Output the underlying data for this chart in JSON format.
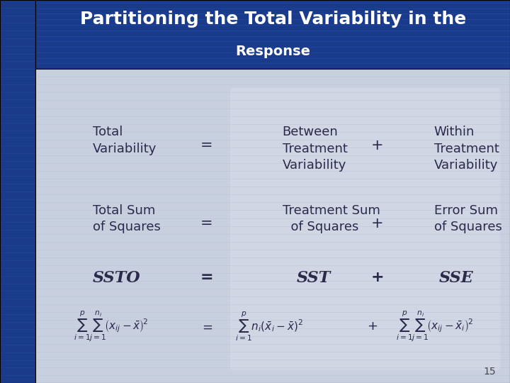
{
  "title_line1": "Partitioning the Total Variability in the",
  "title_line2": "Response",
  "title_bg_color": "#1a3a8a",
  "title_text_color": "#ffffff",
  "body_bg_color": "#d0d8e8",
  "slide_bg_color": "#b0b8cc",
  "left_bar_color": "#1a3a8a",
  "row1_col1": "Total\nVariability",
  "row1_eq": "=",
  "row1_col2": "Between\nTreatment\nVariability",
  "row1_plus": "+",
  "row1_col3": "Within\nTreatment\nVariability",
  "row2_col1": "Total Sum\nof Squares",
  "row2_eq": "=",
  "row2_col2": "Treatment Sum\n  of Squares",
  "row2_plus": "+",
  "row2_col3": "Error Sum\nof Squares",
  "row3_col1": "SSTO",
  "row3_eq": "=",
  "row3_col2": "SST",
  "row3_plus": "+",
  "row3_col3": "SSE",
  "eq1_lhs": "\\sum_{i=1}^{p} \\sum_{j=1}^{n_i} \\left(x_{ij} - \\bar{x}\\right)^2",
  "eq1_rhs1": "\\sum_{i=1}^{p} n_i \\left(\\bar{x}_i - \\bar{x}\\right)^2",
  "eq1_rhs2": "\\sum_{i=1}^{p} \\sum_{j=1}^{n_i} \\left(x_{ij} - \\bar{x}_i\\right)^2",
  "page_num": "15",
  "text_color": "#2a2a4a",
  "italic_color": "#1a1a3a"
}
